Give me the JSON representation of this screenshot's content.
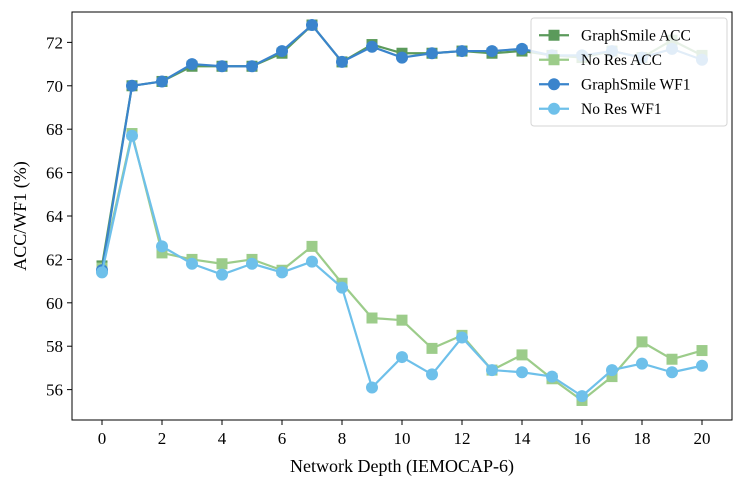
{
  "chart_data": {
    "type": "line",
    "title": "",
    "xlabel": "Network Depth (IEMOCAP-6)",
    "ylabel": "ACC/WF1 (%)",
    "xlim": [
      -1,
      21
    ],
    "ylim": [
      54.6,
      73.4
    ],
    "xticks": [
      0,
      2,
      4,
      6,
      8,
      10,
      12,
      14,
      16,
      18,
      20
    ],
    "yticks": [
      56,
      58,
      60,
      62,
      64,
      66,
      68,
      70,
      72
    ],
    "grid": false,
    "legend_position": "top-right",
    "x": [
      0,
      1,
      2,
      3,
      4,
      5,
      6,
      7,
      8,
      9,
      10,
      11,
      12,
      13,
      14,
      15,
      16,
      17,
      18,
      19,
      20
    ],
    "series": [
      {
        "name": "GraphSmile ACC",
        "marker": "square",
        "color": "#5b9a5b",
        "values": [
          61.7,
          70.0,
          70.2,
          70.9,
          70.9,
          70.9,
          71.5,
          72.8,
          71.1,
          71.9,
          71.5,
          71.5,
          71.6,
          71.5,
          71.6,
          71.4,
          71.3,
          71.6,
          71.3,
          72.1,
          71.4
        ]
      },
      {
        "name": "No Res ACC",
        "marker": "square",
        "color": "#9ccc8a",
        "values": [
          61.6,
          67.8,
          62.3,
          62.0,
          61.8,
          62.0,
          61.5,
          62.6,
          60.9,
          59.3,
          59.2,
          57.9,
          58.5,
          56.9,
          57.6,
          56.5,
          55.5,
          56.6,
          58.2,
          57.4,
          57.8
        ]
      },
      {
        "name": "GraphSmile WF1",
        "marker": "circle",
        "color": "#3a84cc",
        "values": [
          61.5,
          70.0,
          70.2,
          71.0,
          70.9,
          70.9,
          71.6,
          72.8,
          71.1,
          71.8,
          71.3,
          71.5,
          71.6,
          71.6,
          71.7,
          71.4,
          71.4,
          71.6,
          71.3,
          71.7,
          71.2
        ]
      },
      {
        "name": "No Res WF1",
        "marker": "circle",
        "color": "#6ec0ea",
        "values": [
          61.4,
          67.7,
          62.6,
          61.8,
          61.3,
          61.8,
          61.4,
          61.9,
          60.7,
          56.1,
          57.5,
          56.7,
          58.4,
          56.9,
          56.8,
          56.6,
          55.7,
          56.9,
          57.2,
          56.8,
          57.1
        ]
      }
    ]
  }
}
